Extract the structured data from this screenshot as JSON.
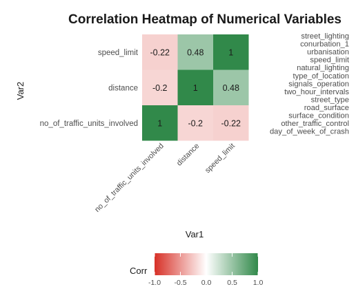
{
  "chart_data": {
    "type": "heatmap",
    "title": "Correlation Heatmap of Numerical Variables",
    "xlabel": "Var1",
    "ylabel": "Var2",
    "x_categories": [
      "no_of_traffic_units_involved",
      "distance",
      "speed_limit"
    ],
    "y_categories": [
      "no_of_traffic_units_involved",
      "distance",
      "speed_limit"
    ],
    "values": [
      [
        1,
        -0.2,
        -0.22
      ],
      [
        -0.2,
        1,
        0.48
      ],
      [
        -0.22,
        0.48,
        1
      ]
    ],
    "value_labels": [
      [
        "1",
        "-0.2",
        "-0.22"
      ],
      [
        "-0.2",
        "1",
        "0.48"
      ],
      [
        "-0.22",
        "0.48",
        "1"
      ]
    ],
    "side_labels": [
      "street_lighting",
      "conurbation_1",
      "urbanisation",
      "speed_limit",
      "natural_lighting",
      "type_of_location",
      "signals_operation",
      "two_hour_intervals",
      "street_type",
      "road_surface",
      "surface_condition",
      "other_traffic_control",
      "day_of_week_of_crash"
    ],
    "legend": {
      "title": "Corr",
      "ticks": [
        "-1.0",
        "-0.5",
        "0.0",
        "0.5",
        "1.0"
      ],
      "range": [
        -1,
        1
      ],
      "low_color": "#d73027",
      "mid_color": "#ffffff",
      "high_color": "#31894a",
      "position": "bottom"
    },
    "grid": false
  }
}
